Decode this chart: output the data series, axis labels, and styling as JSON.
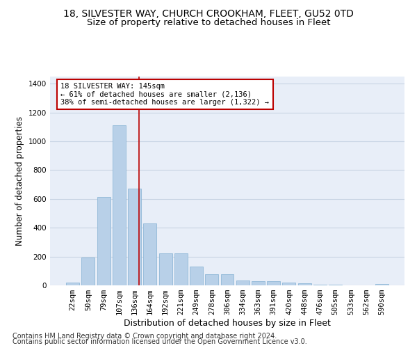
{
  "title_line1": "18, SILVESTER WAY, CHURCH CROOKHAM, FLEET, GU52 0TD",
  "title_line2": "Size of property relative to detached houses in Fleet",
  "xlabel": "Distribution of detached houses by size in Fleet",
  "ylabel": "Number of detached properties",
  "footer_line1": "Contains HM Land Registry data © Crown copyright and database right 2024.",
  "footer_line2": "Contains public sector information licensed under the Open Government Licence v3.0.",
  "categories": [
    "22sqm",
    "50sqm",
    "79sqm",
    "107sqm",
    "136sqm",
    "164sqm",
    "192sqm",
    "221sqm",
    "249sqm",
    "278sqm",
    "306sqm",
    "334sqm",
    "363sqm",
    "391sqm",
    "420sqm",
    "448sqm",
    "476sqm",
    "505sqm",
    "533sqm",
    "562sqm",
    "590sqm"
  ],
  "values": [
    20,
    195,
    615,
    1110,
    670,
    430,
    220,
    220,
    130,
    75,
    75,
    35,
    30,
    28,
    18,
    15,
    5,
    5,
    0,
    0,
    12
  ],
  "bar_color": "#b8d0e8",
  "bar_edge_color": "#90b8d8",
  "annotation_box_text": "18 SILVESTER WAY: 145sqm\n← 61% of detached houses are smaller (2,136)\n38% of semi-detached houses are larger (1,322) →",
  "annotation_box_color": "#ffffff",
  "annotation_box_edge_color": "#bb0000",
  "vline_x": 4.3,
  "vline_color": "#bb0000",
  "ylim": [
    0,
    1450
  ],
  "yticks": [
    0,
    200,
    400,
    600,
    800,
    1000,
    1200,
    1400
  ],
  "grid_color": "#c8d4e4",
  "bg_color": "#e8eef8",
  "title1_fontsize": 10,
  "title2_fontsize": 9.5,
  "xlabel_fontsize": 9,
  "ylabel_fontsize": 8.5,
  "tick_fontsize": 7.5,
  "footer_fontsize": 7,
  "ann_fontsize": 7.5
}
